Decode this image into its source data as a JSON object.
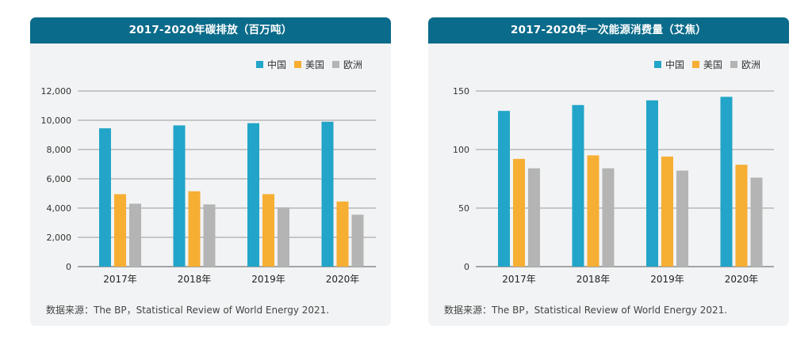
{
  "chart_data": [
    {
      "type": "bar",
      "title": "2017-2020年碳排放（百万吨）",
      "categories": [
        "2017年",
        "2018年",
        "2019年",
        "2020年"
      ],
      "series": [
        {
          "name": "中国",
          "color": "#22a5c8",
          "values": [
            9450,
            9650,
            9800,
            9900
          ]
        },
        {
          "name": "美国",
          "color": "#f6ae33",
          "values": [
            4950,
            5150,
            4950,
            4450
          ]
        },
        {
          "name": "欧洲",
          "color": "#b4b4b4",
          "values": [
            4300,
            4250,
            4050,
            3550
          ]
        }
      ],
      "yticks": [
        0,
        2000,
        4000,
        6000,
        8000,
        10000,
        12000
      ],
      "ytick_labels": [
        "0",
        "2,000",
        "4,000",
        "6,000",
        "8,000",
        "10,000",
        "12,000"
      ],
      "ylim": [
        0,
        12000
      ],
      "legend": "top-right",
      "source": "数据来源：The BP，Statistical Review of World Energy 2021."
    },
    {
      "type": "bar",
      "title": "2017-2020年一次能源消费量（艾焦）",
      "categories": [
        "2017年",
        "2018年",
        "2019年",
        "2020年"
      ],
      "series": [
        {
          "name": "中国",
          "color": "#22a5c8",
          "values": [
            133,
            138,
            142,
            145
          ]
        },
        {
          "name": "美国",
          "color": "#f6ae33",
          "values": [
            92,
            95,
            94,
            87
          ]
        },
        {
          "name": "欧洲",
          "color": "#b4b4b4",
          "values": [
            84,
            84,
            82,
            76
          ]
        }
      ],
      "yticks": [
        0,
        50,
        100,
        150
      ],
      "ytick_labels": [
        "0",
        "50",
        "100",
        "150"
      ],
      "ylim": [
        0,
        150
      ],
      "legend": "top-right",
      "source": "数据来源：The BP，Statistical Review of World Energy 2021."
    }
  ]
}
